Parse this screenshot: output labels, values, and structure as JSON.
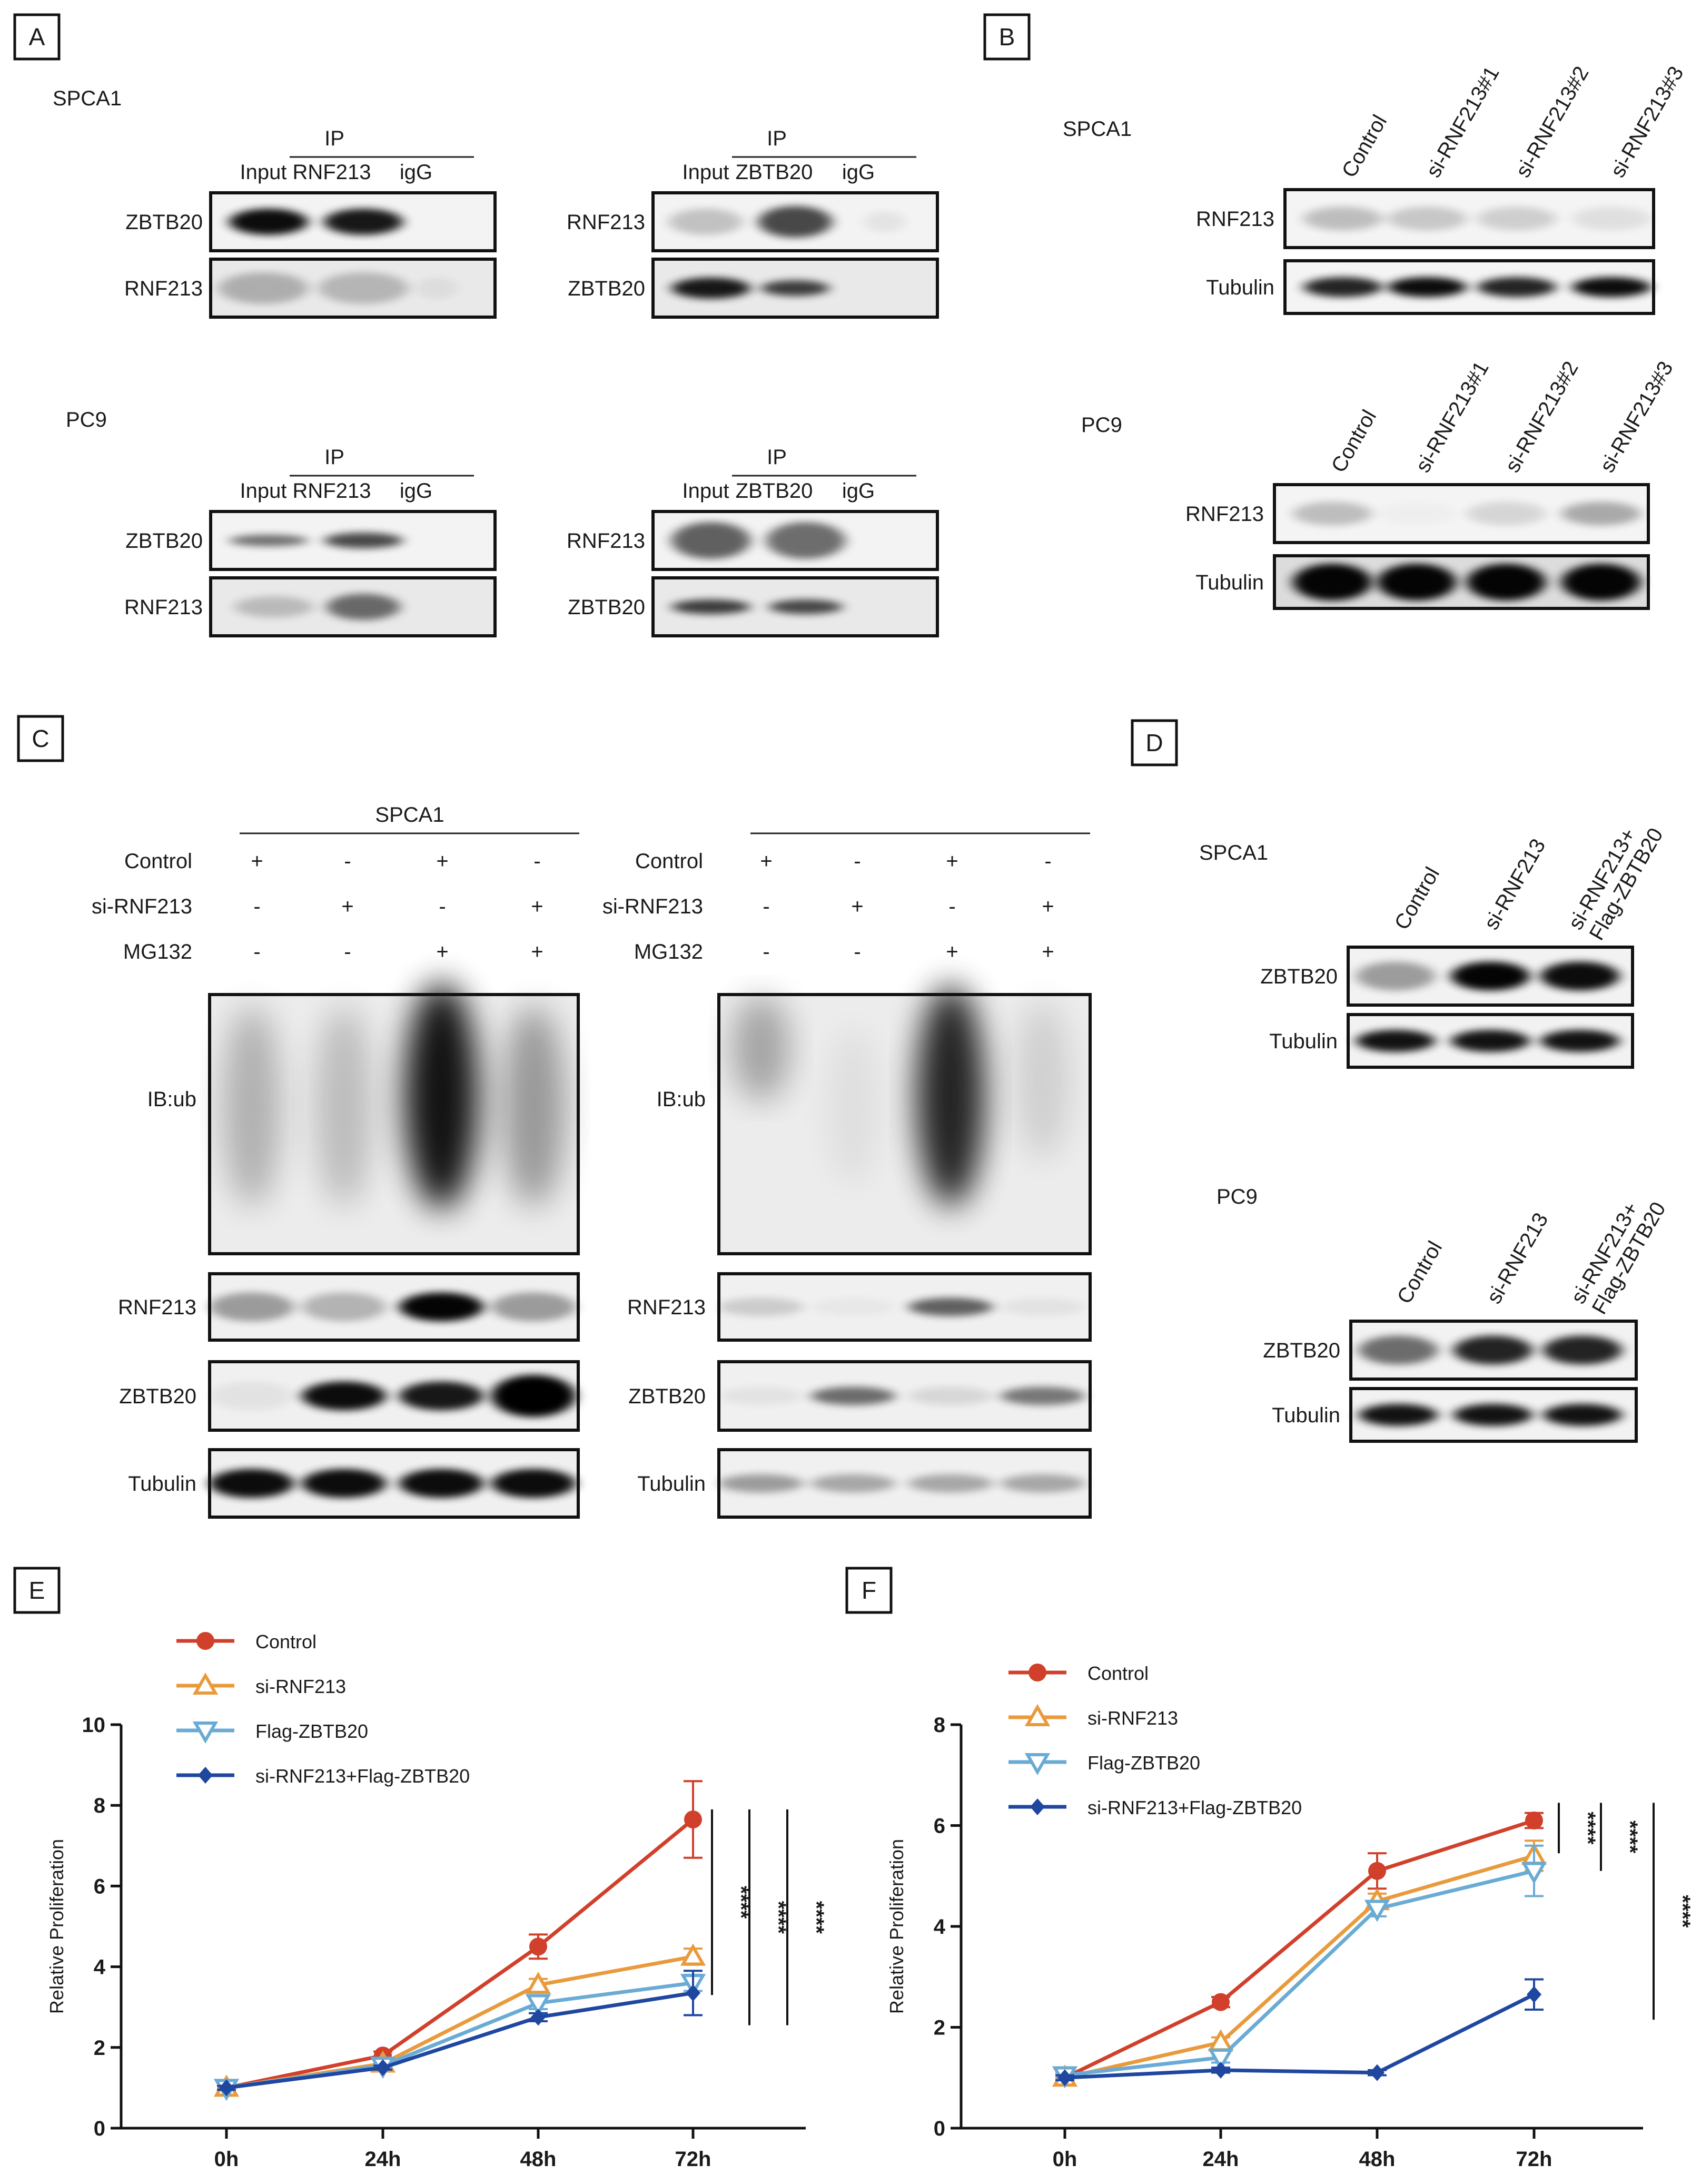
{
  "panels": {
    "A": {
      "letter": "A",
      "groups": [
        {
          "cell": "SPCA1",
          "blots": [
            {
              "lanes": [
                "Input",
                "RNF213",
                "igG"
              ],
              "ip": "IP",
              "rows": [
                "ZBTB20",
                "RNF213"
              ]
            },
            {
              "lanes": [
                "Input",
                "ZBTB20",
                "igG"
              ],
              "ip": "IP",
              "rows": [
                "RNF213",
                "ZBTB20"
              ]
            }
          ]
        },
        {
          "cell": "PC9",
          "blots": [
            {
              "lanes": [
                "Input",
                "RNF213",
                "igG"
              ],
              "ip": "IP",
              "rows": [
                "ZBTB20",
                "RNF213"
              ]
            },
            {
              "lanes": [
                "Input",
                "ZBTB20",
                "igG"
              ],
              "ip": "IP",
              "rows": [
                "RNF213",
                "ZBTB20"
              ]
            }
          ]
        }
      ]
    },
    "B": {
      "letter": "B",
      "groups": [
        {
          "cell": "SPCA1",
          "lanes": [
            "Control",
            "si-RNF213#1",
            "si-RNF213#2",
            "si-RNF213#3"
          ],
          "rows": [
            "RNF213",
            "Tubulin"
          ]
        },
        {
          "cell": "PC9",
          "lanes": [
            "Control",
            "si-RNF213#1",
            "si-RNF213#2",
            "si-RNF213#3"
          ],
          "rows": [
            "RNF213",
            "Tubulin"
          ]
        }
      ]
    },
    "C": {
      "letter": "C",
      "left_title": "SPCA1",
      "treatments": [
        {
          "name": "Control",
          "signs": [
            "+",
            "-",
            "+",
            "-"
          ]
        },
        {
          "name": "si-RNF213",
          "signs": [
            "-",
            "+",
            "-",
            "+"
          ]
        },
        {
          "name": "MG132",
          "signs": [
            "-",
            "-",
            "+",
            "+"
          ]
        }
      ],
      "rows": [
        "IB:ub",
        "RNF213",
        "ZBTB20",
        "Tubulin"
      ]
    },
    "D": {
      "letter": "D",
      "groups": [
        {
          "cell": "SPCA1",
          "lanes": [
            "Control",
            "si-RNF213",
            "si-RNF213+",
            "Flag-ZBTB20"
          ],
          "rows": [
            "ZBTB20",
            "Tubulin"
          ]
        },
        {
          "cell": "PC9",
          "lanes": [
            "Control",
            "si-RNF213",
            "si-RNF213+",
            "Flag-ZBTB20"
          ],
          "rows": [
            "ZBTB20",
            "Tubulin"
          ]
        }
      ]
    },
    "E": {
      "letter": "E"
    },
    "F": {
      "letter": "F"
    }
  },
  "chart_data": [
    {
      "panel": "E",
      "type": "line",
      "categories": [
        "0h",
        "24h",
        "48h",
        "72h"
      ],
      "ylabel": "Relative Proliferation",
      "ylim": [
        0,
        10
      ],
      "yticks": [
        "0",
        "2",
        "4",
        "6",
        "8",
        "10"
      ],
      "series": [
        {
          "name": "Control",
          "color": "#d0402b",
          "marker": "circle",
          "values": [
            1.0,
            1.8,
            4.5,
            7.65
          ],
          "err": [
            0.15,
            0.1,
            0.3,
            0.95
          ]
        },
        {
          "name": "si-RNF213",
          "color": "#e99a3c",
          "marker": "triangle-up",
          "values": [
            1.0,
            1.6,
            3.55,
            4.25
          ],
          "err": [
            0.05,
            0.05,
            0.15,
            0.2
          ]
        },
        {
          "name": "Flag-ZBTB20",
          "color": "#6aabd5",
          "marker": "triangle-down",
          "values": [
            1.0,
            1.55,
            3.1,
            3.6
          ],
          "err": [
            0.05,
            0.05,
            0.15,
            0.2
          ]
        },
        {
          "name": "si-RNF213+Flag-ZBTB20",
          "color": "#1f47a0",
          "marker": "diamond",
          "values": [
            1.0,
            1.5,
            2.75,
            3.35
          ],
          "err": [
            0.05,
            0.05,
            0.1,
            0.55
          ]
        }
      ],
      "significance": [
        "****",
        "****",
        "****"
      ]
    },
    {
      "panel": "F",
      "type": "line",
      "categories": [
        "0h",
        "24h",
        "48h",
        "72h"
      ],
      "ylabel": "Relative Proliferation",
      "ylim": [
        0,
        8
      ],
      "yticks": [
        "0",
        "2",
        "4",
        "6",
        "8"
      ],
      "series": [
        {
          "name": "Control",
          "color": "#d0402b",
          "marker": "circle",
          "values": [
            1.0,
            2.5,
            5.1,
            6.1
          ],
          "err": [
            0.1,
            0.1,
            0.35,
            0.15
          ]
        },
        {
          "name": "si-RNF213",
          "color": "#e99a3c",
          "marker": "triangle-up",
          "values": [
            1.0,
            1.7,
            4.5,
            5.4
          ],
          "err": [
            0.05,
            0.1,
            0.15,
            0.3
          ]
        },
        {
          "name": "Flag-ZBTB20",
          "color": "#6aabd5",
          "marker": "triangle-down",
          "values": [
            1.05,
            1.4,
            4.35,
            5.1
          ],
          "err": [
            0.05,
            0.1,
            0.15,
            0.5
          ]
        },
        {
          "name": "si-RNF213+Flag-ZBTB20",
          "color": "#1f47a0",
          "marker": "diamond",
          "values": [
            1.0,
            1.15,
            1.1,
            2.65
          ],
          "err": [
            0.05,
            0.05,
            0.05,
            0.3
          ]
        }
      ],
      "significance": [
        "****",
        "****",
        "****"
      ]
    }
  ]
}
